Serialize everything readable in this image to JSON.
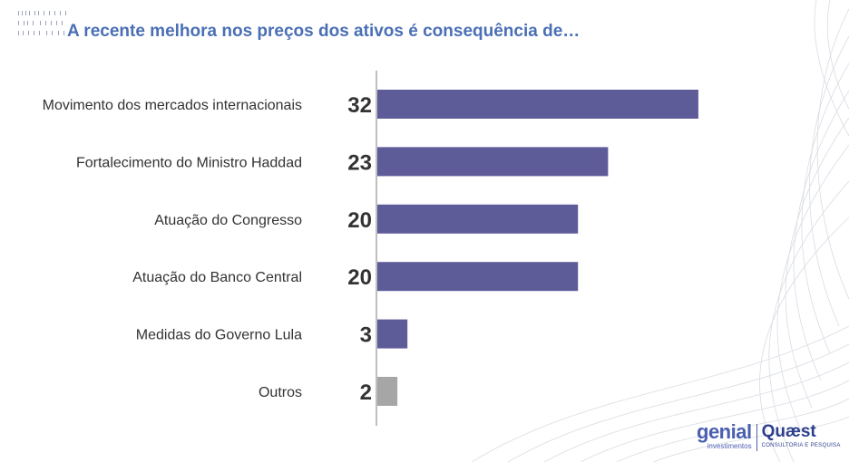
{
  "title": "A recente melhora nos preços dos ativos é consequência de…",
  "chart_data": {
    "type": "bar",
    "orientation": "horizontal",
    "categories": [
      "Movimento dos mercados internacionais",
      "Fortalecimento do Ministro Haddad",
      "Atuação do Congresso",
      "Atuação do Banco Central",
      "Medidas do Governo Lula",
      "Outros"
    ],
    "values": [
      32,
      23,
      20,
      20,
      3,
      2
    ],
    "colors": [
      "#5e5b99",
      "#5e5b99",
      "#5e5b99",
      "#5e5b99",
      "#5e5b99",
      "#a6a6a6"
    ],
    "xlim": [
      0,
      35
    ],
    "grid": false,
    "legend": "none"
  },
  "logos": {
    "genial_name": "genial",
    "genial_sub": "investimentos",
    "quaest_name": "Quæst",
    "quaest_sub": "CONSULTORIA E PESQUISA"
  },
  "colors": {
    "title": "#4a6fb5",
    "bar": "#5e5b99",
    "bar_other": "#a6a6a6",
    "axis": "#bfbfbf"
  }
}
